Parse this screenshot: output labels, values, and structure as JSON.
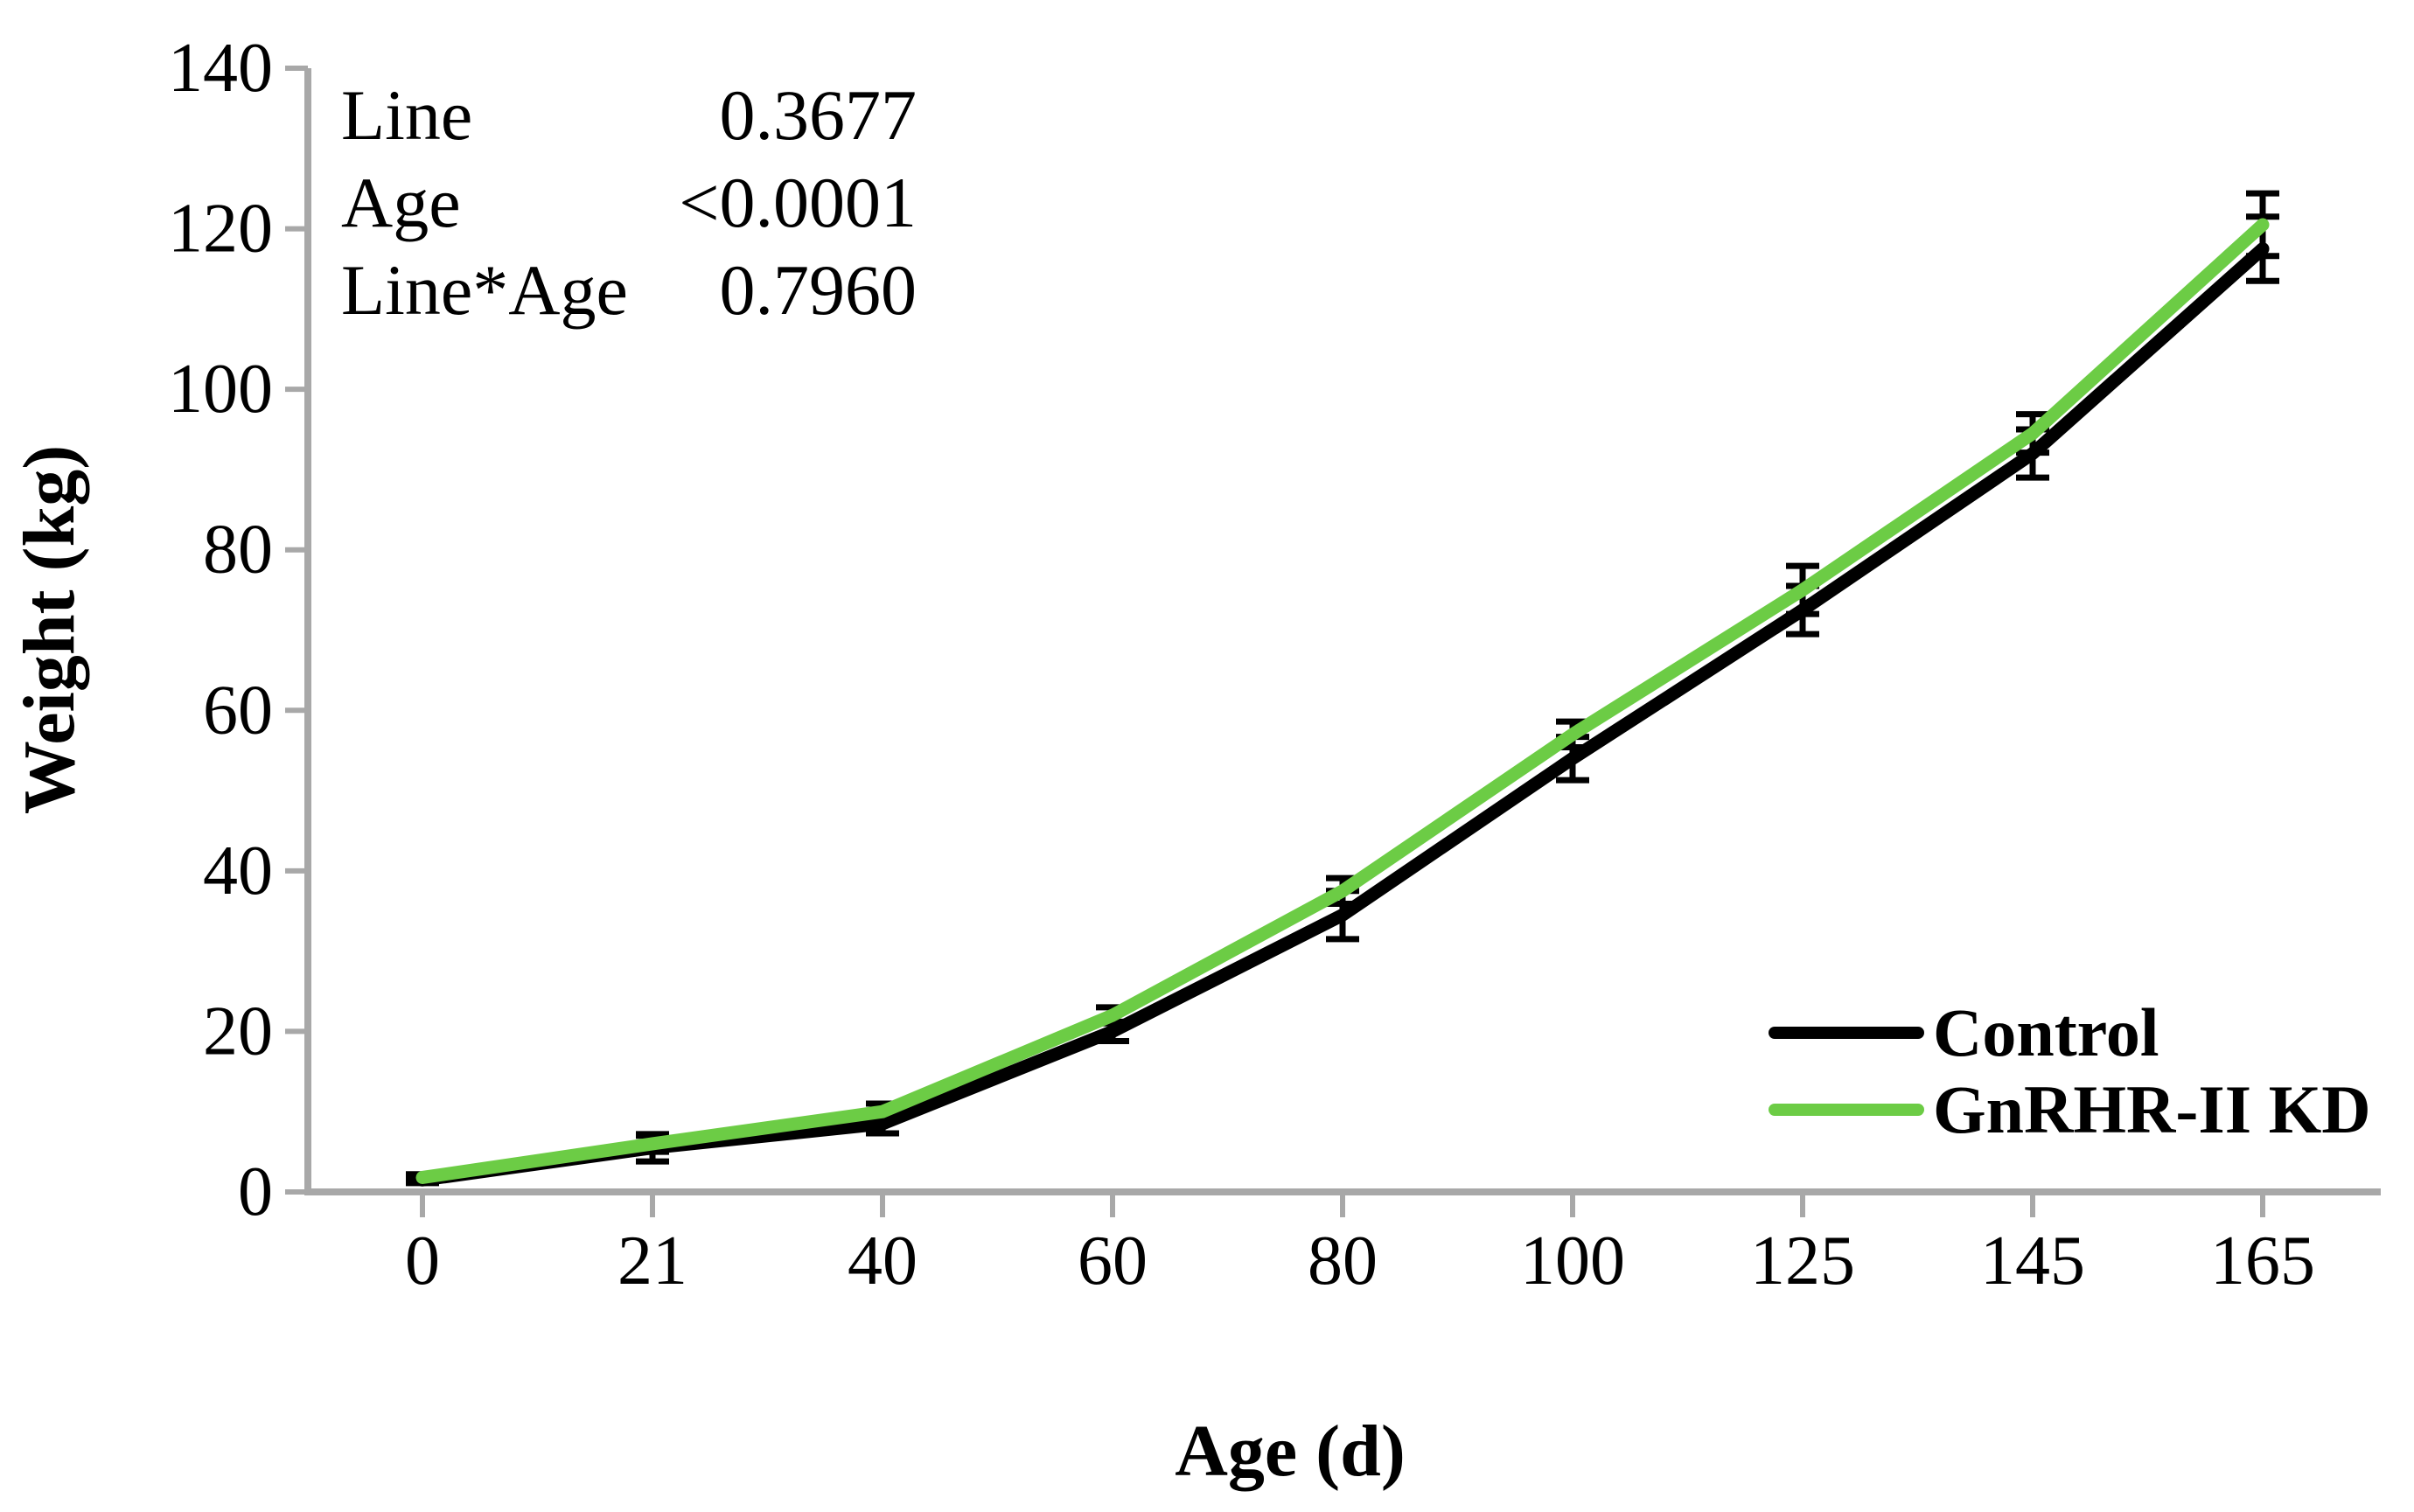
{
  "stats": {
    "rows": [
      {
        "label": "Line",
        "value": "0.3677"
      },
      {
        "label": "Age",
        "value": "<0.0001"
      },
      {
        "label": "Line*Age",
        "value": "0.7960"
      }
    ]
  },
  "chart_data": {
    "type": "line",
    "title": "",
    "xlabel": "Age (d)",
    "ylabel": "Weight (kg)",
    "categories": [
      "0",
      "21",
      "40",
      "60",
      "80",
      "100",
      "125",
      "145",
      "165"
    ],
    "series": [
      {
        "name": "Control",
        "color": "#000000",
        "values": [
          1.5,
          5.5,
          8.5,
          20,
          34.5,
          54,
          72.5,
          92,
          117.5
        ],
        "errors": [
          0.4,
          1.7,
          1.2,
          1.2,
          3.0,
          2.7,
          3.0,
          3.0,
          4.0
        ]
      },
      {
        "name": "GnRHR-II KD",
        "color": "#6CCC45",
        "values": [
          1.8,
          6.0,
          10.0,
          22,
          37.5,
          57,
          75,
          94.5,
          120.5
        ],
        "errors": [
          0.4,
          1.0,
          1.0,
          1.0,
          1.6,
          1.6,
          3.0,
          2.4,
          3.9
        ]
      }
    ],
    "ylim": [
      0,
      140
    ],
    "ytick_step": 20,
    "grid": false,
    "legend_position": "lower right",
    "error_bar_color": "#000000",
    "axis_color": "#A8A8A8",
    "tick_label_color": "#000000"
  }
}
